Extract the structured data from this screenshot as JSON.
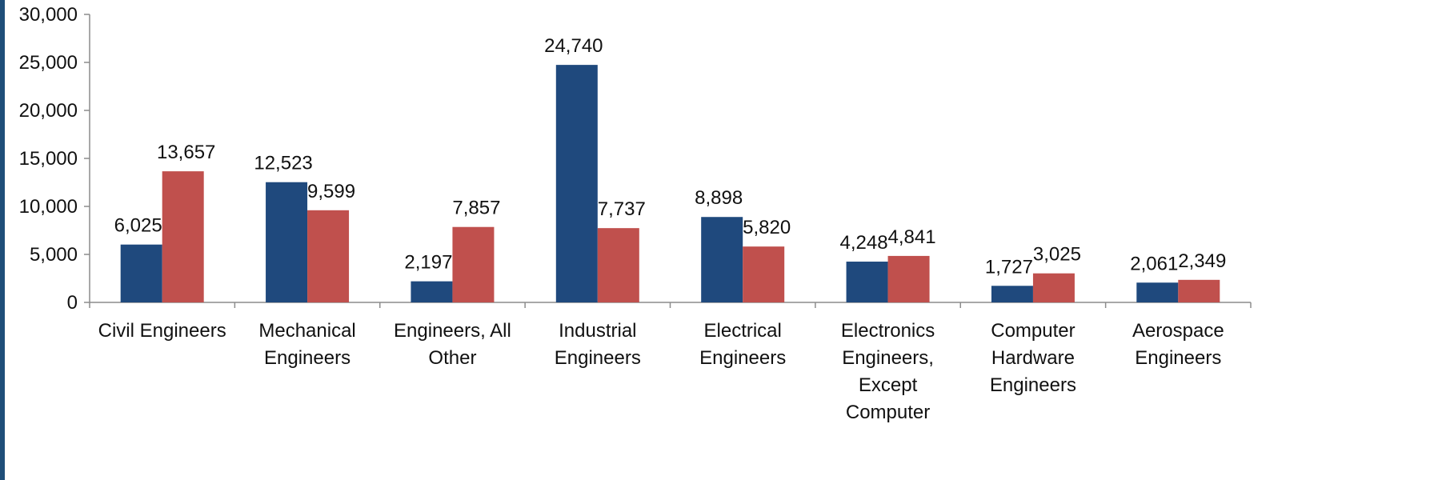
{
  "chart_data": {
    "type": "bar",
    "categories": [
      [
        "Civil Engineers"
      ],
      [
        "Mechanical",
        "Engineers"
      ],
      [
        "Engineers, All",
        "Other"
      ],
      [
        "Industrial",
        "Engineers"
      ],
      [
        "Electrical",
        "Engineers"
      ],
      [
        "Electronics",
        "Engineers,",
        "Except",
        "Computer"
      ],
      [
        "Computer",
        "Hardware",
        "Engineers"
      ],
      [
        "Aerospace",
        "Engineers"
      ]
    ],
    "series": [
      {
        "values": [
          6025,
          12523,
          2197,
          24740,
          8898,
          4248,
          1727,
          2061
        ],
        "labels": [
          "6,025",
          "12,523",
          "2,197",
          "24,740",
          "8,898",
          "4,248",
          "1,727",
          "2,061"
        ],
        "color": "#1f497d"
      },
      {
        "values": [
          13657,
          9599,
          7857,
          7737,
          5820,
          4841,
          3025,
          2349
        ],
        "labels": [
          "13,657",
          "9,599",
          "7,857",
          "7,737",
          "5,820",
          "4,841",
          "3,025",
          "2,349"
        ],
        "color": "#c0504d"
      }
    ],
    "y_ticks": [
      0,
      5000,
      10000,
      15000,
      20000,
      25000,
      30000
    ],
    "y_tick_labels": [
      "0",
      "5,000",
      "10,000",
      "15,000",
      "20,000",
      "25,000",
      "30,000"
    ],
    "ylim": [
      0,
      30000
    ],
    "grid": false,
    "legend": "none"
  }
}
